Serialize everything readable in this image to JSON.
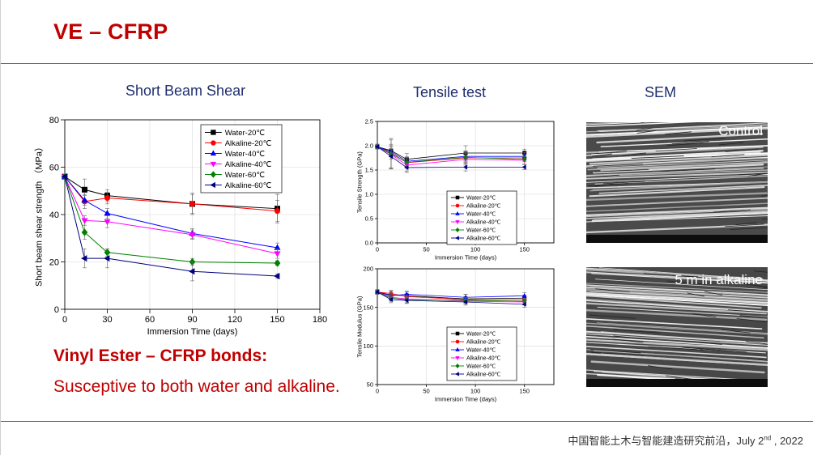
{
  "slide": {
    "title": "VE – CFRP",
    "footer_text": "中国智能土木与智能建造研究前沿，July 2",
    "footer_sup": "nd",
    "footer_year": " , 2022"
  },
  "sections": {
    "sbs_title": "Short Beam Shear",
    "tensile_title": "Tensile test",
    "sem_title": "SEM"
  },
  "sem": {
    "control_label": "Control",
    "alkaline_label": "5 m in alkaline"
  },
  "summary": {
    "heading": "Vinyl Ester – CFRP bonds:",
    "description": "Susceptive to both water and alkaline."
  },
  "colors": {
    "accent_red": "#c00000",
    "divider_green": "#2f7f5f",
    "title_blue": "#1f2f6f"
  },
  "chart_data": [
    {
      "type": "line",
      "xlabel": "Immersion Time (days)",
      "ylabel": "Short beam shear strength （MPa）",
      "x": [
        0,
        14,
        30,
        90,
        150
      ],
      "xlim": [
        0,
        180
      ],
      "ylim": [
        0,
        80
      ],
      "xticks": [
        0,
        30,
        60,
        90,
        120,
        150,
        180
      ],
      "yticks": [
        0,
        20,
        40,
        60,
        80
      ],
      "legend_position": "top-right",
      "error_bars": true,
      "series": [
        {
          "name": "Water-20℃",
          "values": [
            56,
            50.5,
            48,
            44.5,
            42.5
          ],
          "color": "#000000",
          "marker": "square"
        },
        {
          "name": "Alkaline-20℃",
          "values": [
            56,
            45.5,
            47,
            44.5,
            41.5
          ],
          "color": "#ff0000",
          "marker": "circle"
        },
        {
          "name": "Water-40℃",
          "values": [
            56,
            46,
            40.5,
            32,
            26
          ],
          "color": "#0000ff",
          "marker": "triangle-up"
        },
        {
          "name": "Alkaline-40℃",
          "values": [
            56,
            37.5,
            37,
            31.5,
            23.5
          ],
          "color": "#ff00ff",
          "marker": "triangle-down"
        },
        {
          "name": "Water-60℃",
          "values": [
            56,
            32.5,
            24,
            20,
            19.5
          ],
          "color": "#008000",
          "marker": "diamond"
        },
        {
          "name": "Alkaline-60℃",
          "values": [
            56,
            21.5,
            21.5,
            16,
            14
          ],
          "color": "#000080",
          "marker": "triangle-left"
        }
      ]
    },
    {
      "type": "line",
      "xlabel": "Immersion Time (days)",
      "ylabel": "Tensile Strength (GPa)",
      "x": [
        0,
        14,
        30,
        90,
        150
      ],
      "xlim": [
        0,
        180
      ],
      "ylim": [
        0,
        2.5
      ],
      "xticks": [
        0,
        50,
        100,
        150
      ],
      "yticks": [
        0.0,
        0.5,
        1.0,
        1.5,
        2.0,
        2.5
      ],
      "legend_position": "bottom-right",
      "error_bars": true,
      "series": [
        {
          "name": "Water-20℃",
          "values": [
            1.98,
            1.9,
            1.72,
            1.85,
            1.85
          ],
          "color": "#000000",
          "marker": "square"
        },
        {
          "name": "Alkaline-20℃",
          "values": [
            1.98,
            1.85,
            1.65,
            1.75,
            1.75
          ],
          "color": "#ff0000",
          "marker": "circle"
        },
        {
          "name": "Water-40℃",
          "values": [
            1.98,
            1.88,
            1.68,
            1.78,
            1.78
          ],
          "color": "#0000ff",
          "marker": "triangle-up"
        },
        {
          "name": "Alkaline-40℃",
          "values": [
            1.98,
            1.82,
            1.6,
            1.72,
            1.7
          ],
          "color": "#ff00ff",
          "marker": "triangle-down"
        },
        {
          "name": "Water-60℃",
          "values": [
            1.98,
            1.83,
            1.66,
            1.76,
            1.72
          ],
          "color": "#008000",
          "marker": "diamond"
        },
        {
          "name": "Alkaline-60℃",
          "values": [
            1.98,
            1.78,
            1.55,
            1.56,
            1.56
          ],
          "color": "#000080",
          "marker": "triangle-left"
        }
      ]
    },
    {
      "type": "line",
      "xlabel": "Immersion Time (days)",
      "ylabel": "Tensile Modulus (GPa)",
      "x": [
        0,
        14,
        30,
        90,
        150
      ],
      "xlim": [
        0,
        180
      ],
      "ylim": [
        50,
        200
      ],
      "xticks": [
        0,
        50,
        100,
        150
      ],
      "yticks": [
        50,
        100,
        150,
        200
      ],
      "legend_position": "bottom-right",
      "error_bars": true,
      "series": [
        {
          "name": "Water-20℃",
          "values": [
            170,
            166,
            165,
            161,
            162
          ],
          "color": "#000000",
          "marker": "square"
        },
        {
          "name": "Alkaline-20℃",
          "values": [
            170,
            168,
            164,
            160,
            160
          ],
          "color": "#ff0000",
          "marker": "circle"
        },
        {
          "name": "Water-40℃",
          "values": [
            170,
            165,
            167,
            163,
            165
          ],
          "color": "#0000ff",
          "marker": "triangle-up"
        },
        {
          "name": "Alkaline-40℃",
          "values": [
            170,
            163,
            161,
            158,
            157
          ],
          "color": "#ff00ff",
          "marker": "triangle-down"
        },
        {
          "name": "Water-60℃",
          "values": [
            170,
            162,
            160,
            159,
            158
          ],
          "color": "#008000",
          "marker": "diamond"
        },
        {
          "name": "Alkaline-60℃",
          "values": [
            170,
            160,
            159,
            157,
            154
          ],
          "color": "#000080",
          "marker": "triangle-left"
        }
      ]
    }
  ]
}
